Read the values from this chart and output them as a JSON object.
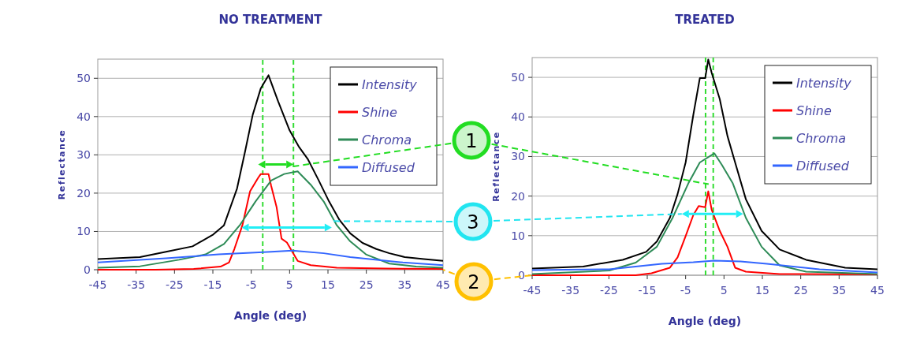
{
  "chart_data": [
    {
      "type": "line",
      "title": "NO TREATMENT",
      "xlabel": "Angle (deg)",
      "ylabel": "Reflectance",
      "xlim": [
        -45,
        45
      ],
      "xticks": [
        -45,
        -35,
        -25,
        -15,
        -5,
        5,
        15,
        25,
        35,
        45
      ],
      "ylim": [
        0,
        55
      ],
      "yticks": [
        0,
        10,
        20,
        30,
        40,
        50
      ],
      "grid": "y",
      "legend": "top right",
      "line_style": "solid",
      "ref_lines": [
        {
          "axis": "x",
          "value": -2,
          "color": "#33dd33",
          "line_style": "dashed"
        },
        {
          "axis": "x",
          "value": 6,
          "color": "#33dd33",
          "line_style": "dashed"
        }
      ],
      "annotations": [
        "1",
        "3",
        "2"
      ],
      "series": [
        {
          "name": "Intensity",
          "color": "#000000",
          "x": [
            -45,
            -34,
            -27.2,
            -20.3,
            -14.9,
            -12.1,
            -8.7,
            -6.6,
            -4.6,
            -2.5,
            -0.5,
            2,
            5,
            7.5,
            9.8,
            12.5,
            15.3,
            18,
            20.8,
            24,
            27.6,
            31,
            35,
            40,
            45
          ],
          "values": [
            2.8,
            3.3,
            4.7,
            6.1,
            9.2,
            11.6,
            21.2,
            30.9,
            40.5,
            47.4,
            50.8,
            44,
            36.4,
            32,
            28.8,
            23.5,
            17.8,
            13,
            9.5,
            7,
            5.4,
            4.3,
            3.3,
            2.8,
            2.3
          ]
        },
        {
          "name": "Shine",
          "color": "#ff0000",
          "x": [
            -45,
            -30,
            -20,
            -13,
            -10.8,
            -9.4,
            -7.3,
            -5.3,
            -3.2,
            -2.5,
            -0.5,
            0.2,
            1.6,
            2.9,
            4.3,
            5.7,
            7.1,
            10.5,
            17.3,
            30,
            45
          ],
          "values": [
            0,
            0,
            0.2,
            0.8,
            1.9,
            5.4,
            11.6,
            20.5,
            24,
            25,
            25,
            21.9,
            16.4,
            8.1,
            7.1,
            4.7,
            2.3,
            1.2,
            0.5,
            0.3,
            0.2
          ]
        },
        {
          "name": "Chroma",
          "color": "#2e8b57",
          "x": [
            -45,
            -34,
            -23.8,
            -16.9,
            -12.1,
            -8,
            -3.9,
            0.2,
            3.6,
            7.1,
            10.5,
            13.9,
            17.3,
            20.8,
            24.9,
            31,
            38,
            45
          ],
          "values": [
            0.5,
            0.9,
            2.6,
            4,
            6.7,
            11.6,
            17.8,
            23.3,
            25,
            25.7,
            22.2,
            17.8,
            11.6,
            7.4,
            4,
            1.6,
            0.8,
            0.5
          ]
        },
        {
          "name": "Diffused",
          "color": "#3366ff",
          "x": [
            -45,
            -27.2,
            -13.5,
            0.2,
            5.7,
            13.9,
            20.8,
            34.5,
            45
          ],
          "values": [
            1.9,
            3,
            4,
            4.7,
            5,
            4.3,
            3.3,
            1.9,
            1.2
          ]
        }
      ]
    },
    {
      "type": "line",
      "title": "TREATED",
      "xlabel": "Angle (deg)",
      "ylabel": "Reflectance",
      "xlim": [
        -45,
        45
      ],
      "xticks": [
        -45,
        -35,
        -25,
        -15,
        -5,
        5,
        15,
        25,
        35,
        45
      ],
      "ylim": [
        0,
        55
      ],
      "yticks": [
        0,
        10,
        20,
        30,
        40,
        50
      ],
      "grid": "y",
      "legend": "top right",
      "line_style": "solid",
      "ref_lines": [
        {
          "axis": "x",
          "value": 0.2,
          "color": "#33dd33",
          "line_style": "dashed"
        },
        {
          "axis": "x",
          "value": 2.2,
          "color": "#33dd33",
          "line_style": "dashed"
        }
      ],
      "series": [
        {
          "name": "Intensity",
          "color": "#000000",
          "x": [
            -45,
            -31.7,
            -21.4,
            -15.3,
            -12.5,
            -9.1,
            -7.1,
            -5,
            -3,
            -1.3,
            0.1,
            0.9,
            1.8,
            3.9,
            5.9,
            7.9,
            10.7,
            14.8,
            19.5,
            26.4,
            36.6,
            45
          ],
          "values": [
            1.7,
            2.2,
            3.9,
            5.9,
            8.5,
            14.5,
            20.5,
            28.5,
            40.5,
            49.8,
            49.8,
            54.5,
            51.1,
            44.5,
            35.2,
            28.5,
            19.2,
            11.2,
            6.5,
            3.9,
            1.9,
            1.5
          ]
        },
        {
          "name": "Shine",
          "color": "#ff0000",
          "x": [
            -45,
            -18,
            -13.9,
            -9.1,
            -7.1,
            -5,
            -3,
            -1.6,
            0.1,
            0.9,
            1.8,
            3.9,
            5.9,
            7.9,
            10.7,
            19.5,
            45
          ],
          "values": [
            0,
            0,
            0.5,
            1.9,
            4.5,
            9.9,
            15.2,
            17.5,
            17.2,
            21.2,
            16.5,
            11.2,
            7.2,
            1.9,
            0.9,
            0.3,
            0.2
          ]
        },
        {
          "name": "Chroma",
          "color": "#2e8b57",
          "x": [
            -45,
            -24.9,
            -18,
            -12.5,
            -8.4,
            -4.3,
            -1.3,
            2.5,
            4.5,
            7.3,
            10.7,
            14.8,
            19.5,
            26.4,
            45
          ],
          "values": [
            0.3,
            1.2,
            3.2,
            7.2,
            14.5,
            23.2,
            28.5,
            30.8,
            27.8,
            23.2,
            14.5,
            7.2,
            2.5,
            0.9,
            0.3
          ]
        },
        {
          "name": "Diffused",
          "color": "#3366ff",
          "x": [
            -45,
            -24.9,
            -11.2,
            -3,
            2.5,
            9.3,
            16.2,
            29.9,
            45
          ],
          "values": [
            1.3,
            1.5,
            2.9,
            3.3,
            3.7,
            3.5,
            2.9,
            1.5,
            0.7
          ]
        }
      ]
    }
  ]
}
